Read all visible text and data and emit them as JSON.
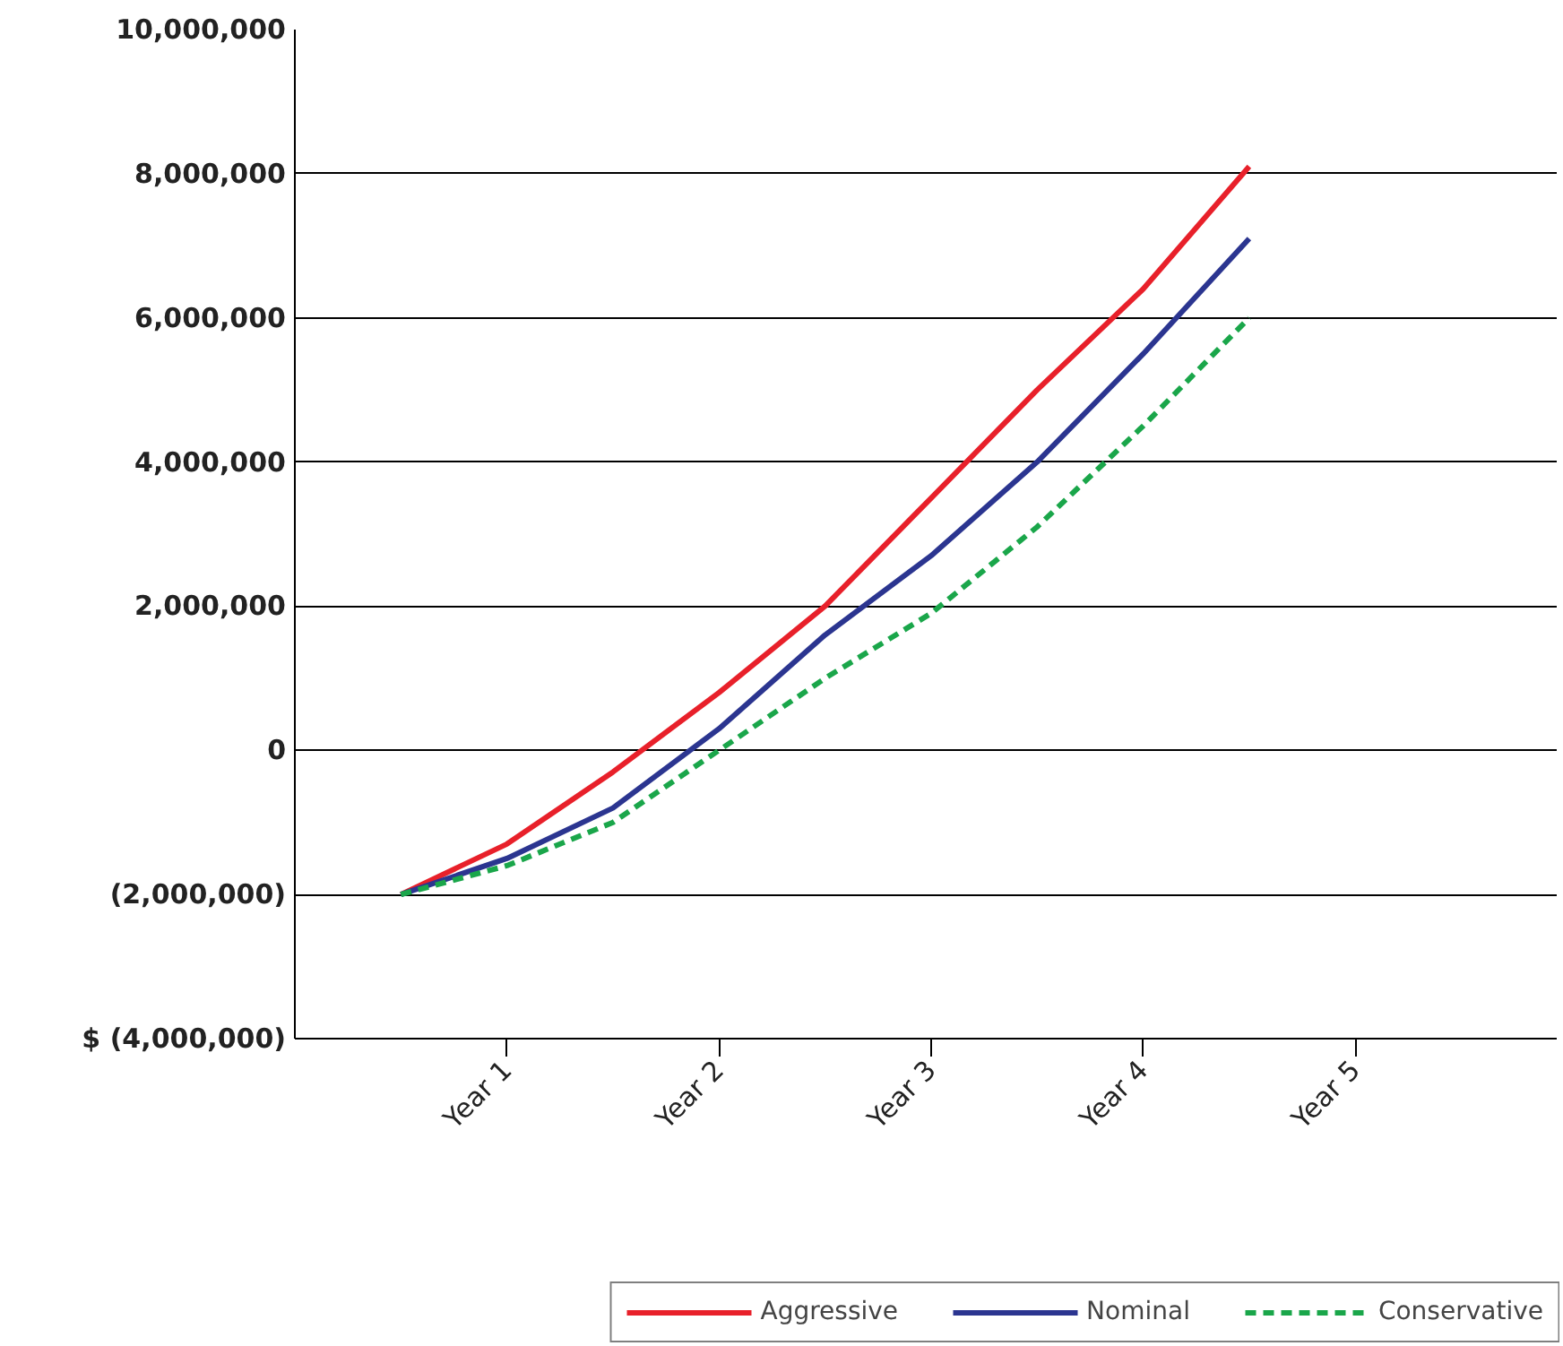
{
  "chart_data": {
    "type": "line",
    "categories": [
      null,
      "Year 1",
      null,
      "Year 2",
      null,
      "Year 3",
      null,
      "Year 4",
      null,
      "Year 5"
    ],
    "ylim": [
      -4000000,
      10000000
    ],
    "yticks": [
      {
        "value": -4000000,
        "label": "$ (4,000,000)"
      },
      {
        "value": -2000000,
        "label": "(2,000,000)"
      },
      0,
      {
        "value": 2000000,
        "label": "2,000,000"
      },
      {
        "value": 4000000,
        "label": "4,000,000"
      },
      {
        "value": 6000000,
        "label": "6,000,000"
      },
      {
        "value": 8000000,
        "label": "8,000,000"
      },
      {
        "value": 10000000,
        "label": "10,000,000"
      }
    ],
    "grid": "y",
    "legend": "bottom right",
    "series": [
      {
        "name": "Aggressive",
        "color": "#e8202a",
        "line_style": "solid",
        "values": [
          -2000000,
          -1300000,
          -300000,
          800000,
          2000000,
          3500000,
          5000000,
          6400000,
          8100000,
          null
        ]
      },
      {
        "name": "Nominal",
        "color": "#2b3590",
        "line_style": "solid",
        "values": [
          -2000000,
          -1500000,
          -800000,
          300000,
          1600000,
          2700000,
          4000000,
          5500000,
          7100000,
          null
        ]
      },
      {
        "name": "Conservative",
        "color": "#1aa64a",
        "line_style": "dashed",
        "values": [
          -2000000,
          -1600000,
          -1000000,
          0,
          1000000,
          1900000,
          3100000,
          4500000,
          6000000,
          null
        ]
      }
    ]
  }
}
